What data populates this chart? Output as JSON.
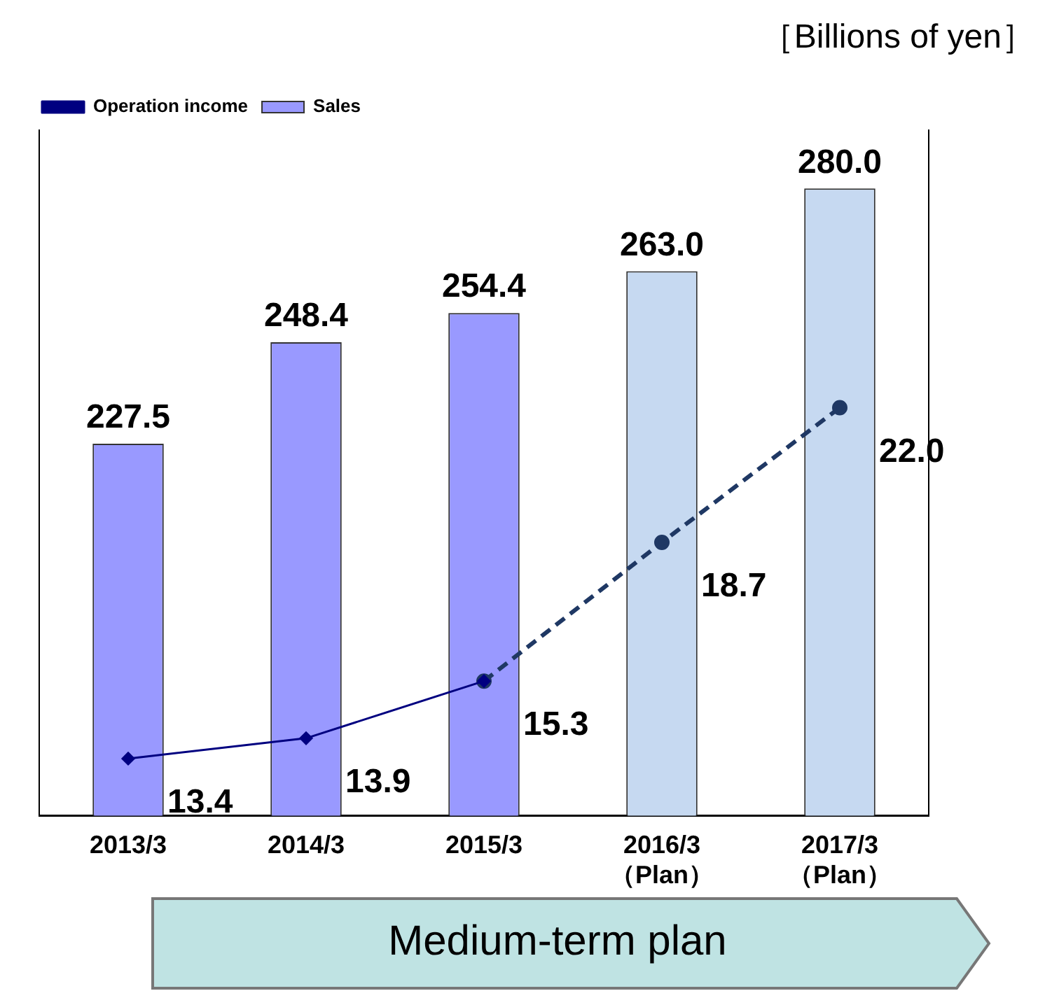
{
  "chart_data": {
    "type": "bar",
    "categories": [
      "2013/3",
      "2014/3",
      "2015/3",
      "2016/3\n（Plan）",
      "2017/3\n（Plan）"
    ],
    "ylim": [
      151,
      292
    ],
    "y2lim": [
      12,
      28.8
    ],
    "tick_labels": "x",
    "legend": "top left",
    "grid": false,
    "series": [
      {
        "name": "Sales",
        "colors": [
          "#9999ff",
          "#9999ff",
          "#9999ff",
          "#c6d9f1",
          "#c6d9f1"
        ],
        "values": [
          227.5,
          248.4,
          254.4,
          263.0,
          280.0
        ],
        "value_labels": [
          "227.5",
          "248.4",
          "254.4",
          "263.0",
          "280.0"
        ]
      },
      {
        "name": "Operation income",
        "type": "line",
        "axis": "y2",
        "color": "#000080",
        "marker": "diamond",
        "line_style": "solid",
        "values": [
          13.4,
          13.9,
          15.3,
          null,
          null
        ],
        "value_labels": [
          "13.4",
          "13.9",
          "15.3",
          null,
          null
        ]
      },
      {
        "type": "line",
        "axis": "y2",
        "color": "#1f3864",
        "marker": "circle",
        "line_style": "dashed",
        "values": [
          null,
          null,
          15.3,
          18.7,
          22.0
        ],
        "value_labels": [
          null,
          null,
          null,
          "18.7",
          "22.0"
        ]
      }
    ],
    "annotations": [
      "［Billions of yen］",
      "Medium-term plan"
    ]
  }
}
